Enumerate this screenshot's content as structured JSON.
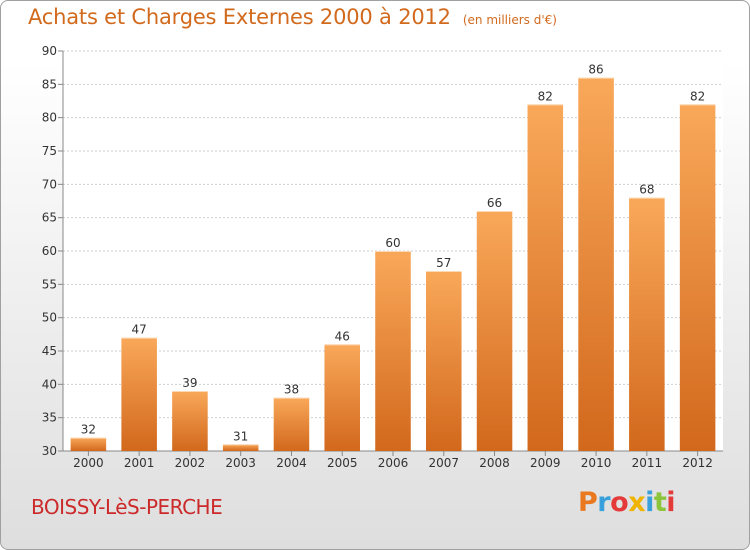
{
  "chart_data": {
    "type": "bar",
    "title": "Achats et Charges Externes 2000 à 2012",
    "subtitle": "(en milliers d'€)",
    "categories": [
      "2000",
      "2001",
      "2002",
      "2003",
      "2004",
      "2005",
      "2006",
      "2007",
      "2008",
      "2009",
      "2010",
      "2011",
      "2012"
    ],
    "values": [
      32,
      47,
      39,
      31,
      38,
      46,
      60,
      57,
      66,
      82,
      86,
      68,
      82
    ],
    "ylim": [
      30,
      90
    ],
    "yticks": [
      "30",
      "35",
      "40",
      "45",
      "50",
      "55",
      "60",
      "65",
      "70",
      "75",
      "80",
      "85",
      "90"
    ],
    "grid": true,
    "bar_color_light": "#f9a85a",
    "bar_color_dark": "#d2681c"
  },
  "commune": "BOISSY-LèS-PERCHE",
  "brand": {
    "letters": [
      "P",
      "r",
      "o",
      "x",
      "i",
      "t",
      "i"
    ],
    "colors": [
      "#e9781e",
      "#3aa0dc",
      "#e43a3a",
      "#f0b400",
      "#3aa0dc",
      "#8cc43c",
      "#e43a3a"
    ]
  }
}
